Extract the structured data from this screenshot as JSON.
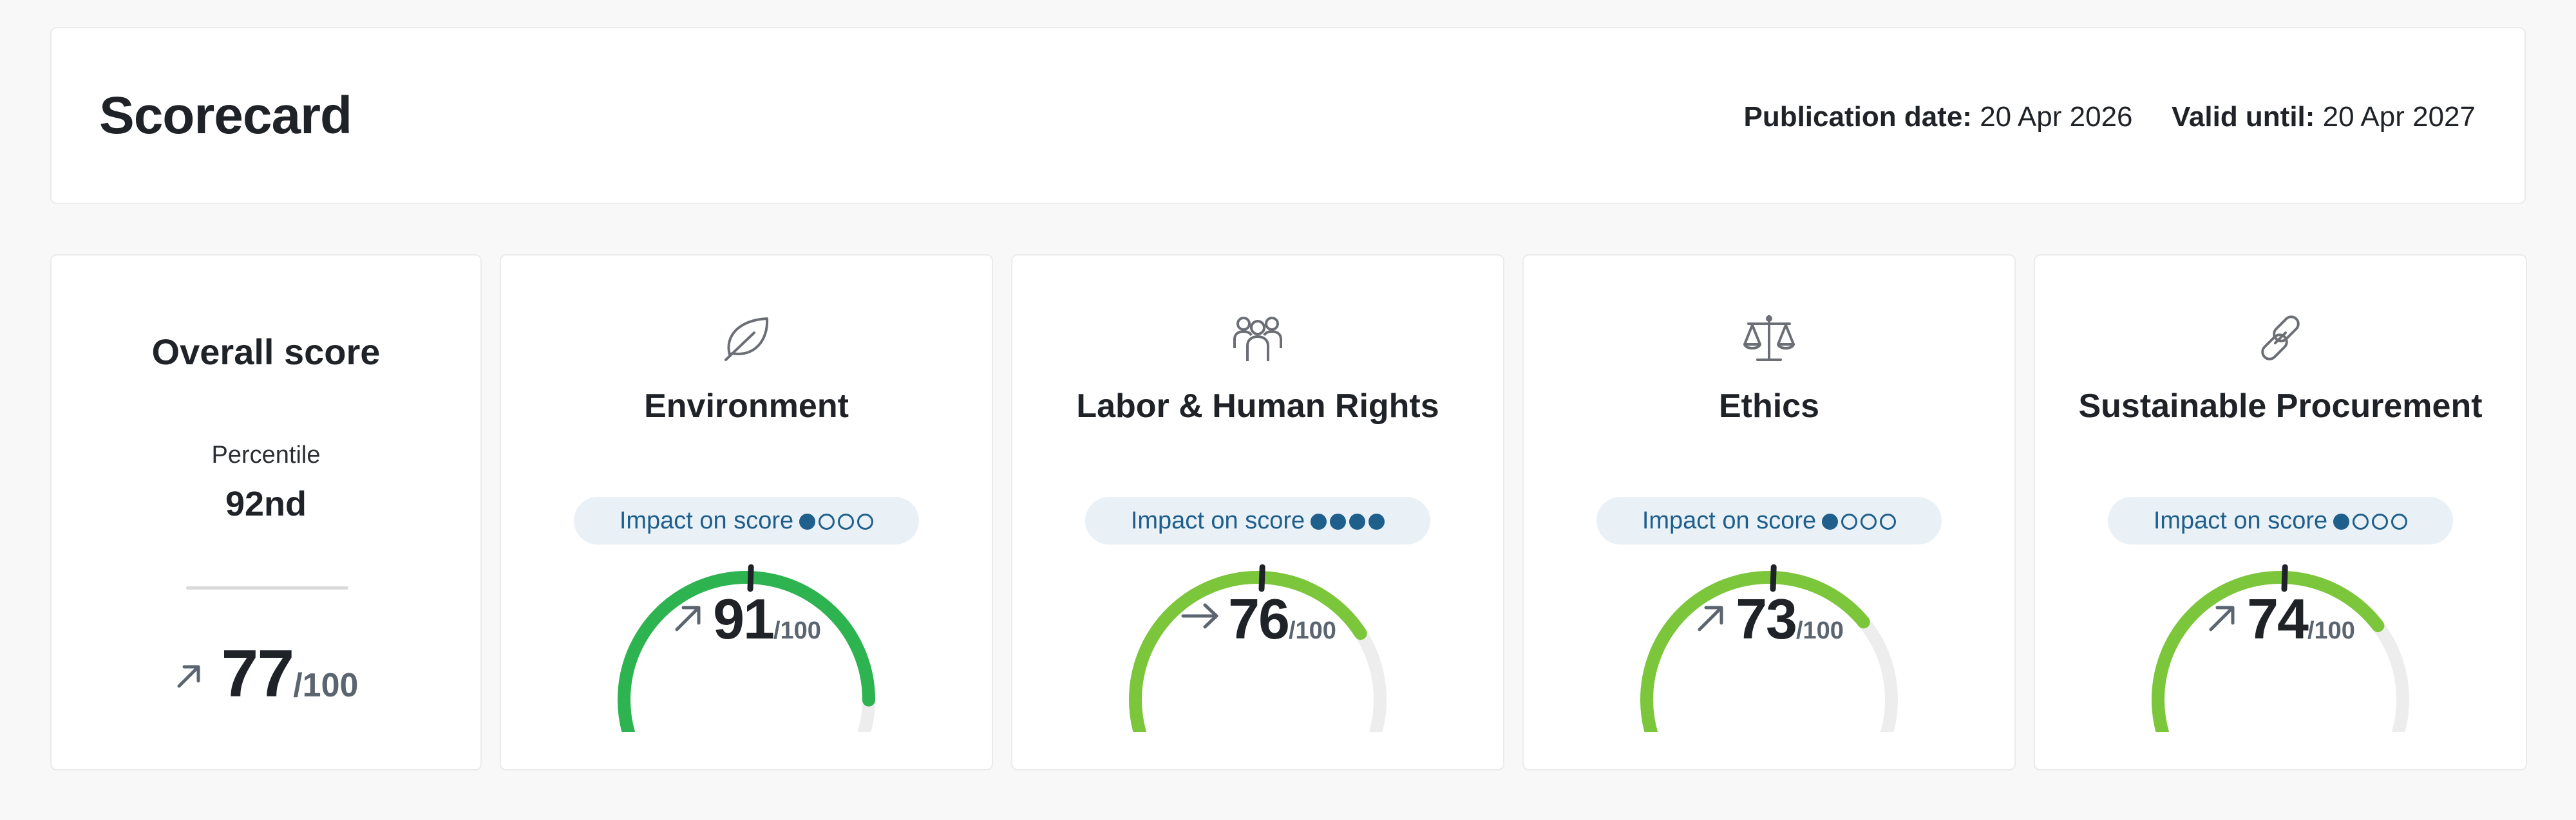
{
  "header": {
    "title": "Scorecard",
    "publication_label": "Publication date:",
    "publication_value": "20 Apr 2026",
    "valid_label": "Valid until:",
    "valid_value": "20 Apr 2027"
  },
  "overall": {
    "title": "Overall score",
    "percentile_label": "Percentile",
    "percentile_value": "92nd",
    "trend": "up",
    "score": "77",
    "out_of": "/100"
  },
  "categories": [
    {
      "title": "Environment",
      "icon": "leaf-icon",
      "impact_label": "Impact on score",
      "impact_level": 1,
      "impact_max": 4,
      "trend": "up",
      "score": "91",
      "out_of": "/100",
      "gauge_fraction": 0.91,
      "color": "#2db350"
    },
    {
      "title": "Labor & Human Rights",
      "icon": "people-icon",
      "impact_label": "Impact on score",
      "impact_level": 4,
      "impact_max": 4,
      "trend": "flat",
      "score": "76",
      "out_of": "/100",
      "gauge_fraction": 0.76,
      "color": "#7cc63b"
    },
    {
      "title": "Ethics",
      "icon": "scale-icon",
      "impact_label": "Impact on score",
      "impact_level": 1,
      "impact_max": 4,
      "trend": "up",
      "score": "73",
      "out_of": "/100",
      "gauge_fraction": 0.73,
      "color": "#7cc63b"
    },
    {
      "title": "Sustainable Procurement",
      "icon": "link-icon",
      "impact_label": "Impact on score",
      "impact_level": 1,
      "impact_max": 4,
      "trend": "up",
      "score": "74",
      "out_of": "/100",
      "gauge_fraction": 0.74,
      "color": "#7cc63b"
    }
  ],
  "colors": {
    "gauge_track": "#ededed",
    "marker": "#1f2328",
    "impact_dot": "#1f5f8b"
  }
}
